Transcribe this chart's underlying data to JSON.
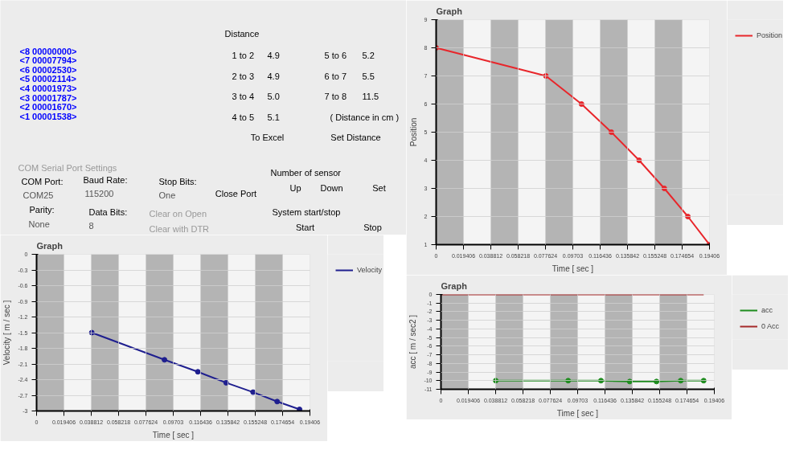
{
  "chart_data": [
    {
      "type": "other",
      "annotations": [
        "<8 00000000>",
        "<7 00007794>",
        "<6 00002530>",
        "<5 00002114>",
        "<4 00001973>",
        "<3 00001787>",
        "<2 00001670>",
        "<1 00001538>",
        "Distance",
        "1 to 2",
        "4.9",
        "2 to 3",
        "4.9",
        "3 to 4",
        "5.0",
        "4 to 5",
        "5.1",
        "5 to 6",
        "5.2",
        "6 to 7",
        "5.5",
        "7 to 8",
        "11.5",
        "( Distance in cm )",
        "To Excel",
        "Set Distance",
        "COM Serial Port Settings",
        "COM Port:",
        "COM25",
        "Baud Rate:",
        "115200",
        "Stop Bits:",
        "One",
        "Parity:",
        "None",
        "Data Bits:",
        "8",
        "Clear on Open",
        "Clear with DTR",
        "Close Port",
        "Number of sensor",
        "Up",
        "Down",
        "Set",
        "System start/stop",
        "Start",
        "Stop"
      ]
    },
    {
      "type": "line",
      "title": "Graph",
      "xlabel": "Time [ sec ]",
      "ylabel": "Velocity [ m / sec ]",
      "xlim": [
        0,
        0.19406
      ],
      "ylim": [
        -3,
        0
      ],
      "xticks": [
        0,
        0.019406,
        0.038812,
        0.058218,
        0.077624,
        0.09703,
        0.116436,
        0.135842,
        0.155248,
        0.174654,
        0.19406
      ],
      "yticks": [
        0,
        -0.3,
        -0.6,
        -0.9,
        -1.2,
        -1.5,
        -1.8,
        -2.1,
        -2.4,
        -2.7,
        -3
      ],
      "bands": [
        {
          "axis": "x",
          "from": 0,
          "to": 0.019406,
          "color": "#b4b4b4"
        },
        {
          "axis": "x",
          "from": 0.038812,
          "to": 0.058218,
          "color": "#b4b4b4"
        },
        {
          "axis": "x",
          "from": 0.077624,
          "to": 0.09703,
          "color": "#b4b4b4"
        },
        {
          "axis": "x",
          "from": 0.116436,
          "to": 0.135842,
          "color": "#b4b4b4"
        },
        {
          "axis": "x",
          "from": 0.155248,
          "to": 0.174654,
          "color": "#b4b4b4"
        }
      ],
      "grid": true,
      "legend": "top right",
      "marker": "circle",
      "series": [
        {
          "name": "Velocity",
          "color": "#1f1f8f",
          "x": [
            0.0392,
            0.0908,
            0.1145,
            0.1346,
            0.1537,
            0.1708,
            0.1867
          ],
          "values": [
            -1.5,
            -2.02,
            -2.25,
            -2.46,
            -2.64,
            -2.82,
            -2.97
          ]
        }
      ]
    },
    {
      "type": "line",
      "title": "Graph",
      "xlabel": "Time [ sec ]",
      "ylabel": "Position",
      "xlim": [
        0,
        0.19406
      ],
      "ylim": [
        1,
        9
      ],
      "xticks": [
        0,
        0.019406,
        0.038812,
        0.058218,
        0.077624,
        0.09703,
        0.116436,
        0.135842,
        0.155248,
        0.174654,
        0.19406
      ],
      "yticks": [
        1,
        2,
        3,
        4,
        5,
        6,
        7,
        8,
        9
      ],
      "bands": [
        {
          "axis": "x",
          "from": 0,
          "to": 0.019406,
          "color": "#b4b4b4"
        },
        {
          "axis": "x",
          "from": 0.038812,
          "to": 0.058218,
          "color": "#b4b4b4"
        },
        {
          "axis": "x",
          "from": 0.077624,
          "to": 0.09703,
          "color": "#b4b4b4"
        },
        {
          "axis": "x",
          "from": 0.116436,
          "to": 0.135842,
          "color": "#b4b4b4"
        },
        {
          "axis": "x",
          "from": 0.155248,
          "to": 0.174654,
          "color": "#b4b4b4"
        }
      ],
      "grid": true,
      "legend": "top right",
      "marker": "circle",
      "series": [
        {
          "name": "Position",
          "color": "#e8262b",
          "x": [
            0,
            0.0779,
            0.1032,
            0.1244,
            0.1441,
            0.162,
            0.1787,
            0.19406
          ],
          "values": [
            8,
            7,
            6,
            5,
            4,
            3,
            2,
            1
          ]
        }
      ]
    },
    {
      "type": "line",
      "title": "Graph",
      "xlabel": "Time [ sec ]",
      "ylabel": "acc [ m / sec2 ]",
      "xlim": [
        0,
        0.19406
      ],
      "ylim": [
        -11,
        0
      ],
      "xticks": [
        0,
        0.019406,
        0.038812,
        0.058218,
        0.077624,
        0.09703,
        0.116436,
        0.135842,
        0.155248,
        0.174654,
        0.19406
      ],
      "yticks": [
        0,
        -1,
        -2,
        -3,
        -4,
        -5,
        -6,
        -7,
        -8,
        -9,
        -10,
        -11
      ],
      "bands": [
        {
          "axis": "x",
          "from": 0,
          "to": 0.019406,
          "color": "#b4b4b4"
        },
        {
          "axis": "x",
          "from": 0.038812,
          "to": 0.058218,
          "color": "#b4b4b4"
        },
        {
          "axis": "x",
          "from": 0.077624,
          "to": 0.09703,
          "color": "#b4b4b4"
        },
        {
          "axis": "x",
          "from": 0.116436,
          "to": 0.135842,
          "color": "#b4b4b4"
        },
        {
          "axis": "x",
          "from": 0.155248,
          "to": 0.174654,
          "color": "#b4b4b4"
        }
      ],
      "grid": true,
      "legend": "top right",
      "series": [
        {
          "name": "acc",
          "color": "#1e8c1e",
          "marker": "circle",
          "x": [
            0.0389,
            0.0903,
            0.1136,
            0.134,
            0.153,
            0.1702,
            0.1865
          ],
          "values": [
            -10,
            -10,
            -10,
            -10.1,
            -10.1,
            -10,
            -10
          ]
        },
        {
          "name": "0 Acc",
          "color": "#a52a2a",
          "marker": "none",
          "x": [
            0,
            0.1865
          ],
          "values": [
            0,
            0
          ]
        }
      ]
    }
  ]
}
